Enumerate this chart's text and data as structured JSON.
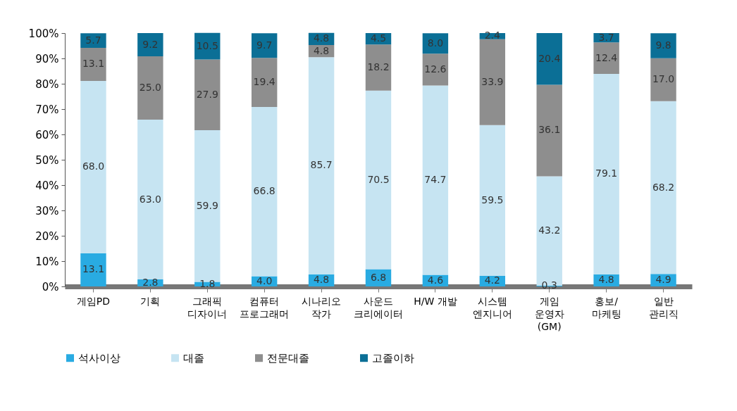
{
  "chart_data": {
    "type": "bar",
    "stacked": true,
    "categories": [
      "게임PD",
      "기획",
      "그래픽\n디자이너",
      "컴퓨터\n프로그래머",
      "시나리오\n작가",
      "사운드\n크리에이터",
      "H/W 개발",
      "시스템\n엔지니어",
      "게임\n운영자\n(GM)",
      "홍보/\n마케팅",
      "일반\n관리직"
    ],
    "series": [
      {
        "name": "석사이상",
        "color": "#29abe2",
        "values": [
          13.1,
          2.8,
          1.8,
          4.0,
          4.8,
          6.8,
          4.6,
          4.2,
          0.3,
          4.8,
          4.9
        ],
        "value_labels": [
          "13.1",
          "2.8",
          "1.8",
          "4.0",
          "4.8",
          "6.8",
          "4.6",
          "4.2",
          "0.3",
          "4.8",
          "4.9"
        ]
      },
      {
        "name": "대졸",
        "color": "#c6e4f2",
        "values": [
          68.0,
          63.0,
          59.9,
          66.8,
          85.7,
          70.5,
          74.7,
          59.5,
          43.2,
          79.1,
          68.2
        ],
        "value_labels": [
          "68.0",
          "63.0",
          "59.9",
          "66.8",
          "85.7",
          "70.5",
          "74.7",
          "59.5",
          "43.2",
          "79.1",
          "68.2"
        ]
      },
      {
        "name": "전문대졸",
        "color": "#8e8e8e",
        "values": [
          13.1,
          25.0,
          27.9,
          19.4,
          4.8,
          18.2,
          12.6,
          33.9,
          36.1,
          12.4,
          17.0
        ],
        "value_labels": [
          "13.1",
          "25.0",
          "27.9",
          "19.4",
          "4.8",
          "18.2",
          "12.6",
          "33.9",
          "36.1",
          "12.4",
          "17.0"
        ]
      },
      {
        "name": "고졸이하",
        "color": "#0b6f96",
        "values": [
          5.7,
          9.2,
          10.5,
          9.7,
          4.8,
          4.5,
          8.0,
          2.4,
          20.4,
          3.7,
          9.8
        ],
        "value_labels": [
          "5.7",
          "9.2",
          "10.5",
          "9.7",
          "4.8",
          "4.5",
          "8.0",
          "2.4",
          "20.4",
          "3.7",
          "9.8"
        ]
      }
    ],
    "ylim": [
      0,
      100
    ],
    "yticks": [
      {
        "value": 0,
        "label": "0%"
      },
      {
        "value": 10,
        "label": "10%"
      },
      {
        "value": 20,
        "label": "20%"
      },
      {
        "value": 30,
        "label": "30%"
      },
      {
        "value": 40,
        "label": "40%"
      },
      {
        "value": 50,
        "label": "50%"
      },
      {
        "value": 60,
        "label": "60%"
      },
      {
        "value": 70,
        "label": "70%"
      },
      {
        "value": 80,
        "label": "80%"
      },
      {
        "value": 90,
        "label": "90%"
      },
      {
        "value": 100,
        "label": "100%"
      }
    ],
    "grid": false,
    "legend": "bottom"
  }
}
